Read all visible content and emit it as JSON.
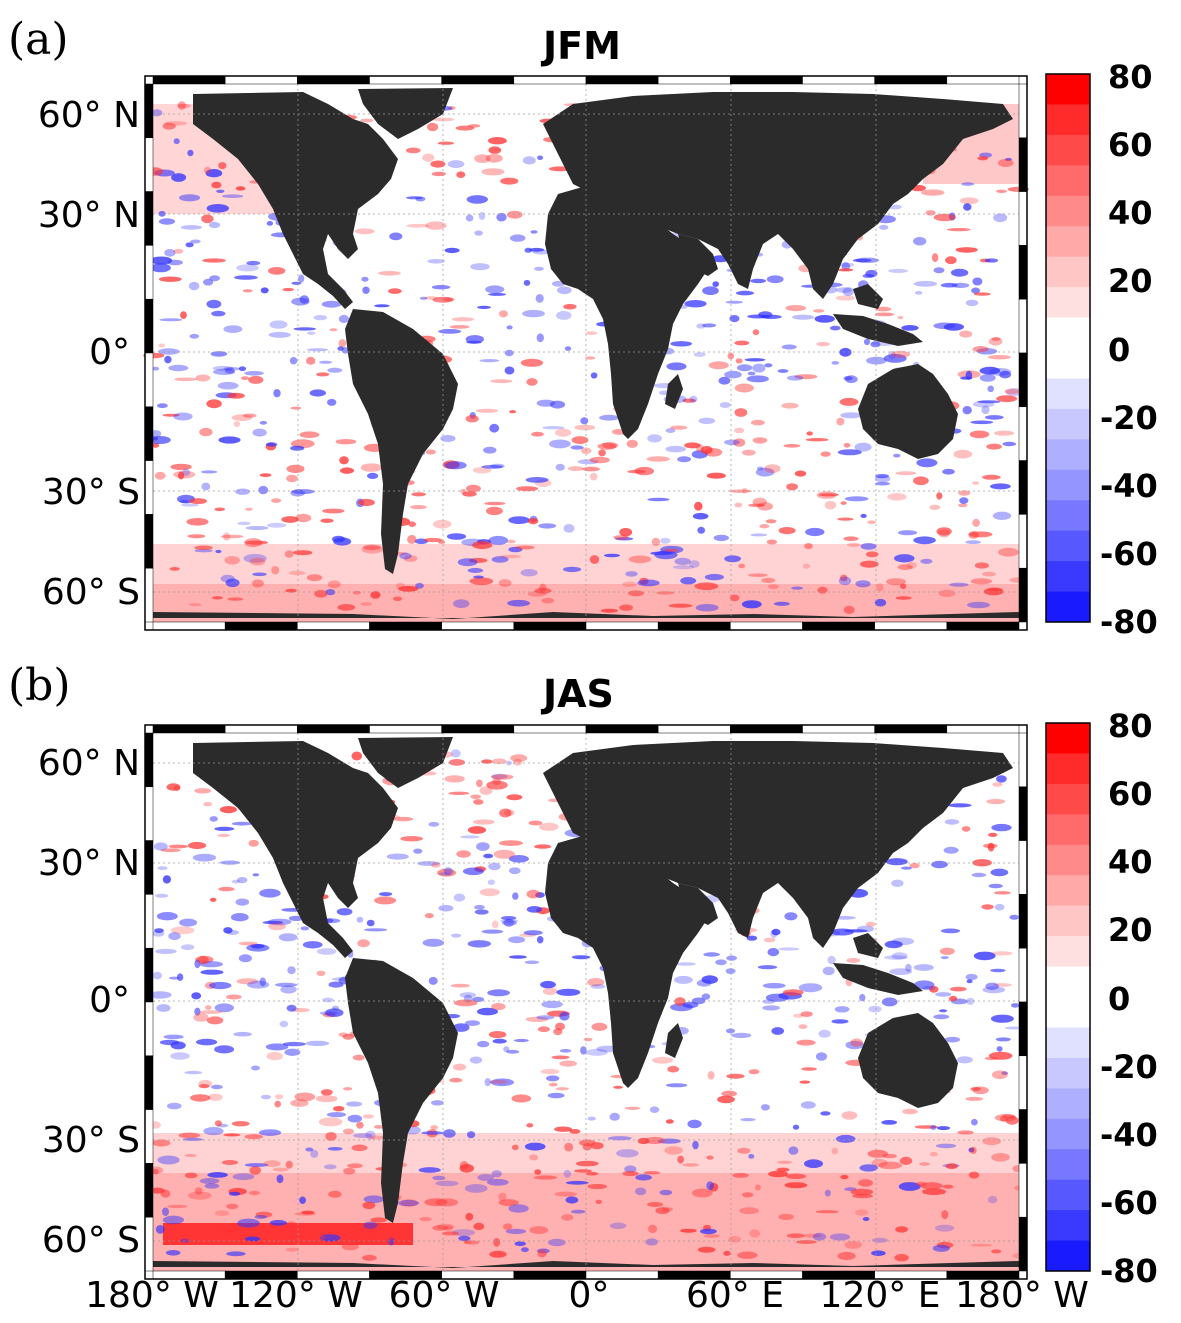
{
  "panels": [
    {
      "label": "(a)",
      "title": "JFM"
    },
    {
      "label": "(b)",
      "title": "JAS"
    }
  ],
  "lat_labels": [
    "60° N",
    "30° N",
    "0°",
    "30° S",
    "60° S"
  ],
  "lon_labels": [
    "180° W",
    "120° W",
    "60° W",
    "0°",
    "60° E",
    "120° E",
    "180° W"
  ],
  "colorbar": {
    "tick_labels": [
      "80",
      "60",
      "40",
      "20",
      "0",
      "-20",
      "-40",
      "-60",
      "-80"
    ],
    "colors": [
      "#ff0000",
      "#ff2a2a",
      "#ff4a4a",
      "#ff6a6a",
      "#ff8a8a",
      "#ffa9a9",
      "#ffc6c6",
      "#ffe0e0",
      "#ffffff",
      "#ffffff",
      "#e0e0ff",
      "#c8c8ff",
      "#afafff",
      "#9595ff",
      "#7777ff",
      "#5858ff",
      "#3a3aff",
      "#1a1aff"
    ]
  },
  "colors": {
    "land": "#2b2b2b",
    "ocean": "#ffffff",
    "positive": "#ff3333",
    "negative": "#3333ff"
  }
}
